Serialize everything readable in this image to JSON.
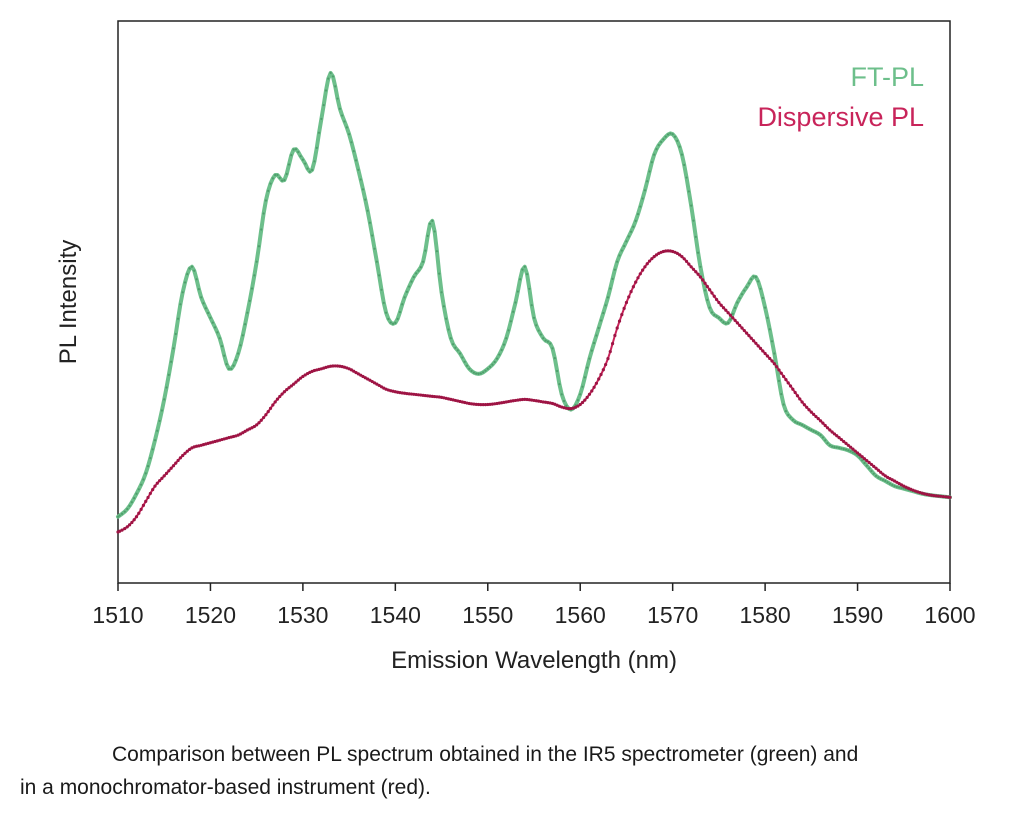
{
  "chart_data": {
    "type": "line",
    "xlabel": "Emission Wavelength (nm)",
    "ylabel": "PL Intensity",
    "xlim": [
      1510,
      1600
    ],
    "ylim": [
      0,
      1
    ],
    "xticks": [
      "1510",
      "1520",
      "1530",
      "1540",
      "1550",
      "1560",
      "1570",
      "1580",
      "1590",
      "1600"
    ],
    "yticks_shown": false,
    "grid": false,
    "legend": {
      "placement": "top-right",
      "entries": [
        "FT-PL",
        "Dispersive PL"
      ]
    },
    "series": [
      {
        "name": "FT-PL",
        "color": "#6dbf8b",
        "x": [
          1510,
          1511,
          1512,
          1513,
          1514,
          1515,
          1516,
          1517,
          1518,
          1519,
          1520,
          1521,
          1522,
          1523,
          1524,
          1525,
          1526,
          1527,
          1528,
          1529,
          1530,
          1531,
          1532,
          1533,
          1534,
          1535,
          1536,
          1537,
          1538,
          1539,
          1540,
          1541,
          1542,
          1543,
          1544,
          1545,
          1546,
          1547,
          1548,
          1549,
          1550,
          1551,
          1552,
          1553,
          1554,
          1555,
          1556,
          1557,
          1558,
          1559,
          1560,
          1561,
          1562,
          1563,
          1564,
          1565,
          1566,
          1567,
          1568,
          1569,
          1570,
          1571,
          1572,
          1573,
          1574,
          1575,
          1576,
          1577,
          1578,
          1579,
          1580,
          1581,
          1582,
          1583,
          1584,
          1585,
          1586,
          1587,
          1588,
          1589,
          1590,
          1591,
          1592,
          1593,
          1594,
          1595,
          1596,
          1597,
          1598,
          1599,
          1600
        ],
        "values": [
          0.13,
          0.145,
          0.175,
          0.215,
          0.28,
          0.36,
          0.46,
          0.57,
          0.62,
          0.56,
          0.52,
          0.48,
          0.42,
          0.45,
          0.53,
          0.63,
          0.75,
          0.8,
          0.79,
          0.85,
          0.83,
          0.81,
          0.91,
          1.0,
          0.93,
          0.88,
          0.81,
          0.73,
          0.63,
          0.53,
          0.51,
          0.56,
          0.6,
          0.63,
          0.71,
          0.57,
          0.48,
          0.45,
          0.42,
          0.41,
          0.42,
          0.44,
          0.48,
          0.55,
          0.62,
          0.52,
          0.48,
          0.46,
          0.37,
          0.34,
          0.37,
          0.44,
          0.5,
          0.56,
          0.63,
          0.67,
          0.71,
          0.77,
          0.84,
          0.87,
          0.88,
          0.84,
          0.74,
          0.62,
          0.54,
          0.52,
          0.51,
          0.55,
          0.58,
          0.6,
          0.54,
          0.45,
          0.35,
          0.32,
          0.31,
          0.3,
          0.29,
          0.27,
          0.265,
          0.26,
          0.25,
          0.23,
          0.21,
          0.2,
          0.19,
          0.185,
          0.18,
          0.175,
          0.172,
          0.17,
          0.168
        ]
      },
      {
        "name": "Dispersive PL",
        "color": "#c8245a",
        "x": [
          1510,
          1511,
          1512,
          1513,
          1514,
          1515,
          1516,
          1517,
          1518,
          1519,
          1520,
          1521,
          1522,
          1523,
          1524,
          1525,
          1526,
          1527,
          1528,
          1529,
          1530,
          1531,
          1532,
          1533,
          1534,
          1535,
          1536,
          1537,
          1538,
          1539,
          1540,
          1541,
          1542,
          1543,
          1544,
          1545,
          1546,
          1547,
          1548,
          1549,
          1550,
          1551,
          1552,
          1553,
          1554,
          1555,
          1556,
          1557,
          1558,
          1559,
          1560,
          1561,
          1562,
          1563,
          1564,
          1565,
          1566,
          1567,
          1568,
          1569,
          1570,
          1571,
          1572,
          1573,
          1574,
          1575,
          1576,
          1577,
          1578,
          1579,
          1580,
          1581,
          1582,
          1583,
          1584,
          1585,
          1586,
          1587,
          1588,
          1589,
          1590,
          1591,
          1592,
          1593,
          1594,
          1595,
          1596,
          1597,
          1598,
          1599,
          1600
        ],
        "values": [
          0.1,
          0.11,
          0.13,
          0.16,
          0.19,
          0.21,
          0.23,
          0.25,
          0.265,
          0.27,
          0.275,
          0.28,
          0.285,
          0.29,
          0.3,
          0.31,
          0.33,
          0.355,
          0.375,
          0.39,
          0.405,
          0.415,
          0.42,
          0.425,
          0.425,
          0.42,
          0.41,
          0.4,
          0.39,
          0.38,
          0.375,
          0.372,
          0.37,
          0.368,
          0.366,
          0.364,
          0.36,
          0.356,
          0.352,
          0.35,
          0.35,
          0.352,
          0.355,
          0.358,
          0.36,
          0.358,
          0.355,
          0.352,
          0.345,
          0.342,
          0.35,
          0.37,
          0.4,
          0.44,
          0.5,
          0.55,
          0.59,
          0.62,
          0.64,
          0.65,
          0.65,
          0.64,
          0.62,
          0.6,
          0.575,
          0.55,
          0.53,
          0.51,
          0.49,
          0.47,
          0.45,
          0.43,
          0.405,
          0.38,
          0.355,
          0.335,
          0.318,
          0.3,
          0.285,
          0.27,
          0.255,
          0.24,
          0.225,
          0.21,
          0.2,
          0.19,
          0.182,
          0.176,
          0.172,
          0.17,
          0.168
        ]
      }
    ]
  },
  "caption": {
    "line1": "Comparison between PL spectrum obtained in the IR5 spectrometer (green) and",
    "line2": "in a monochromator-based instrument (red)."
  }
}
